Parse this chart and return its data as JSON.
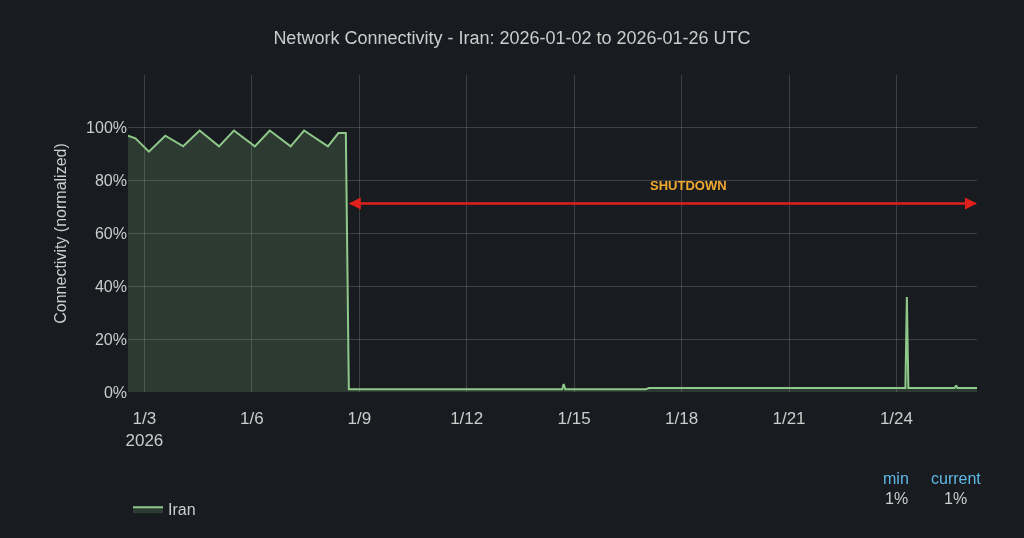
{
  "chart_data": {
    "type": "area",
    "title": "Network Connectivity - Iran: 2026-01-02 to 2026-01-26 UTC",
    "ylabel": "Connectivity (normalized)",
    "x": [
      "2026-01-02T13:00",
      "2026-01-02T18:00",
      "2026-01-03T03:00",
      "2026-01-03T14:00",
      "2026-01-04T02:00",
      "2026-01-04T13:00",
      "2026-01-05T02:00",
      "2026-01-05T12:00",
      "2026-01-06T02:00",
      "2026-01-06T12:00",
      "2026-01-07T02:00",
      "2026-01-07T11:00",
      "2026-01-08T03:00",
      "2026-01-08T10:00",
      "2026-01-08T15:00",
      "2026-01-08T17:00",
      "2026-01-09T00:00",
      "2026-01-12T00:00",
      "2026-01-14T16:00",
      "2026-01-14T17:00",
      "2026-01-14T18:00",
      "2026-01-17T00:00",
      "2026-01-17T02:00",
      "2026-01-20T00:00",
      "2026-01-24T06:00",
      "2026-01-24T07:00",
      "2026-01-24T08:00",
      "2026-01-25T15:00",
      "2026-01-25T16:00",
      "2026-01-25T17:00",
      "2026-01-26T06:00"
    ],
    "series": [
      {
        "name": "Iran",
        "color": "#8fc98a",
        "values": [
          97,
          96,
          91,
          97,
          93,
          99,
          93,
          99,
          93,
          99,
          93,
          99,
          93,
          98,
          98,
          1,
          1,
          1,
          1,
          3,
          1,
          1,
          1.5,
          1.5,
          1.5,
          36,
          1.5,
          1.5,
          2.5,
          1.5,
          1.5
        ]
      }
    ],
    "xlim": [
      "2026-01-02T13:00",
      "2026-01-26T06:00"
    ],
    "xticks": [
      {
        "value": "2026-01-03",
        "label": "1/3\n2026"
      },
      {
        "value": "2026-01-06",
        "label": "1/6"
      },
      {
        "value": "2026-01-09",
        "label": "1/9"
      },
      {
        "value": "2026-01-12",
        "label": "1/12"
      },
      {
        "value": "2026-01-15",
        "label": "1/15"
      },
      {
        "value": "2026-01-18",
        "label": "1/18"
      },
      {
        "value": "2026-01-21",
        "label": "1/21"
      },
      {
        "value": "2026-01-24",
        "label": "1/24"
      }
    ],
    "ylim": [
      0,
      120
    ],
    "yticks": [
      {
        "value": 0,
        "label": "0%"
      },
      {
        "value": 20,
        "label": "20%"
      },
      {
        "value": 40,
        "label": "40%"
      },
      {
        "value": 60,
        "label": "60%"
      },
      {
        "value": 80,
        "label": "80%"
      },
      {
        "value": 100,
        "label": "100%"
      }
    ],
    "annotations": [
      "SHUTDOWN",
      "min",
      "current",
      "1%",
      "1%"
    ],
    "grid": true,
    "legend": "bottom"
  }
}
